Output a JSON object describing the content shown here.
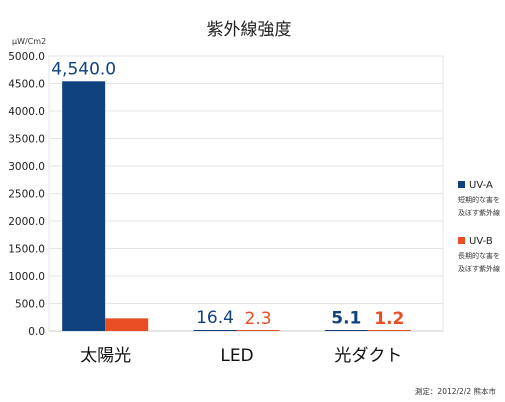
{
  "chart_data": {
    "type": "bar",
    "title": "紫外線強度",
    "ylabel": "μW/Cm2",
    "xlabel": "",
    "ylim": [
      0,
      5000
    ],
    "yticks": [
      "0.0",
      "500.0",
      "1000.0",
      "1500.0",
      "2000.0",
      "2500.0",
      "3000.0",
      "3500.0",
      "4000.0",
      "4500.0",
      "5000.0"
    ],
    "categories": [
      "太陽光",
      "LED",
      "光ダクト"
    ],
    "category_colors": [
      "#111111",
      "#111111",
      "#2aa3dc"
    ],
    "series": [
      {
        "name": "UV-A",
        "note": [
          "短期的な害を",
          "及ぼす紫外線"
        ],
        "color": "#10427f",
        "values": [
          4540.0,
          16.4,
          5.1
        ],
        "labels": [
          "4,540.0",
          "16.4",
          "5.1"
        ]
      },
      {
        "name": "UV-B",
        "note": [
          "長期的な害を",
          "及ぼす紫外線"
        ],
        "color": "#e94e25",
        "values": [
          230.0,
          2.3,
          1.2
        ],
        "labels": [
          "",
          "2.3",
          "1.2"
        ]
      }
    ],
    "grid": true,
    "legend_position": "right"
  },
  "footnote": "測定：2012/2/2 熊本市"
}
